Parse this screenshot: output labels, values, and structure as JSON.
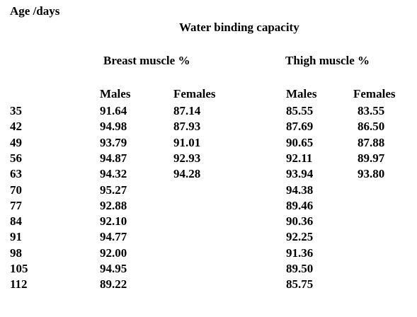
{
  "headers": {
    "age": "Age /days",
    "main": "Water binding  capacity",
    "breast": "Breast muscle %",
    "thigh": "Thigh muscle %",
    "breast_males": "Males",
    "breast_females": "Females",
    "thigh_males": "Males",
    "thigh_females": "Females"
  },
  "rows": [
    {
      "age": "35",
      "breast_males": "91.64",
      "breast_females": "87.14",
      "thigh_males": "85.55",
      "thigh_females": "83.55"
    },
    {
      "age": "42",
      "breast_males": "94.98",
      "breast_females": "87.93",
      "thigh_males": "87.69",
      "thigh_females": "86.50"
    },
    {
      "age": "49",
      "breast_males": "93.79",
      "breast_females": "91.01",
      "thigh_males": "90.65",
      "thigh_females": "87.88"
    },
    {
      "age": "56",
      "breast_males": "94.87",
      "breast_females": "92.93",
      "thigh_males": "92.11",
      "thigh_females": "89.97"
    },
    {
      "age": "63",
      "breast_males": "94.32",
      "breast_females": "94.28",
      "thigh_males": "93.94",
      "thigh_females": "93.80"
    },
    {
      "age": "70",
      "breast_males": "95.27",
      "breast_females": "",
      "thigh_males": "94.38",
      "thigh_females": ""
    },
    {
      "age": "77",
      "breast_males": "92.88",
      "breast_females": "",
      "thigh_males": "89.46",
      "thigh_females": ""
    },
    {
      "age": "84",
      "breast_males": "92.10",
      "breast_females": "",
      "thigh_males": "90.36",
      "thigh_females": ""
    },
    {
      "age": "91",
      "breast_males": "94.77",
      "breast_females": "",
      "thigh_males": "92.25",
      "thigh_females": ""
    },
    {
      "age": "98",
      "breast_males": "92.00",
      "breast_females": "",
      "thigh_males": "91.36",
      "thigh_females": ""
    },
    {
      "age": "105",
      "breast_males": "94.95",
      "breast_females": "",
      "thigh_males": "89.50",
      "thigh_females": ""
    },
    {
      "age": "112",
      "breast_males": "89.22",
      "breast_females": "",
      "thigh_males": "85.75",
      "thigh_females": ""
    }
  ]
}
